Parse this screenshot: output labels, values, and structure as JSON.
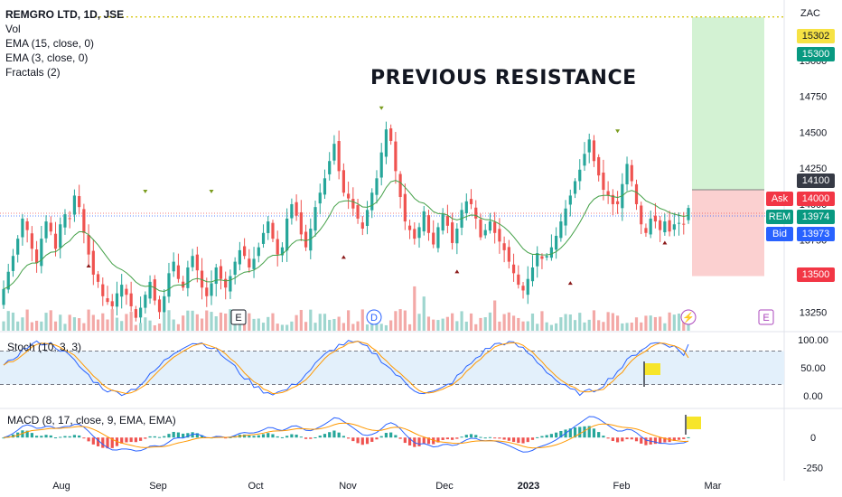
{
  "legend": {
    "symbol": "REMGRO LTD, 1D, JSE",
    "vol": "Vol",
    "ema1": "EMA (15, close, 0)",
    "ema2": "EMA (3, close, 0)",
    "fractals": "Fractals (2)"
  },
  "annotation": "PREVIOUS RESISTANCE",
  "currency": "ZAC",
  "price_tags": {
    "resistance_line": "15302",
    "target": "15300",
    "entry": "14100",
    "ask_value": "14000",
    "last_value": "13974",
    "bid_value": "13973",
    "stop": "13500"
  },
  "quote_labels": {
    "ask": "Ask",
    "last": "REM",
    "bid": "Bid"
  },
  "pane_labels": {
    "stoch": "Stoch (10, 3, 3)",
    "macd": "MACD (8, 17, close, 9, EMA, EMA)"
  },
  "event_badges": [
    "E",
    "D",
    "E"
  ],
  "colors": {
    "up": "#26a69a",
    "down": "#ef5350",
    "ema_slow": "#43a047",
    "k_line": "#2962ff",
    "d_line": "#ff9800",
    "profit_zone": "#d3f2d3",
    "loss_zone": "#fbd0d0",
    "flag": "#f7e52a"
  },
  "chart_data": [
    {
      "type": "candlestick",
      "title": "REMGRO LTD, 1D, JSE",
      "x_ticks": [
        "Aug",
        "Sep",
        "Oct",
        "Nov",
        "Dec",
        "2023",
        "Feb",
        "Mar"
      ],
      "y_ticks": [
        15000,
        14750,
        14500,
        14250,
        14000,
        13750,
        13500,
        13250
      ],
      "ylim": [
        13120,
        15420
      ],
      "series": [
        {
          "name": "EMA (15, close, 0)",
          "style": "line"
        },
        {
          "name": "EMA (3, close, 0)",
          "style": "line"
        }
      ],
      "resistance_level": 15302,
      "position": {
        "entry": 14100,
        "target": 15300,
        "stop": 13500
      },
      "closes": [
        13410,
        13530,
        13640,
        13760,
        13900,
        13820,
        13690,
        13590,
        13760,
        13880,
        13810,
        13690,
        13860,
        13930,
        13900,
        14060,
        13980,
        13800,
        13650,
        13510,
        13460,
        13360,
        13320,
        13290,
        13380,
        13440,
        13370,
        13290,
        13210,
        13280,
        13370,
        13460,
        13330,
        13250,
        13360,
        13520,
        13600,
        13480,
        13420,
        13560,
        13640,
        13540,
        13420,
        13360,
        13450,
        13560,
        13480,
        13420,
        13500,
        13600,
        13680,
        13640,
        13560,
        13620,
        13700,
        13800,
        13880,
        13760,
        13650,
        13700,
        13900,
        14000,
        13920,
        13790,
        13700,
        13830,
        13980,
        14080,
        14180,
        14300,
        14420,
        14230,
        14080,
        14040,
        13970,
        13900,
        13830,
        13960,
        14080,
        14180,
        14360,
        14520,
        14440,
        14230,
        14050,
        13880,
        13820,
        13760,
        13840,
        13950,
        13800,
        13720,
        13840,
        13930,
        13850,
        13730,
        13830,
        13960,
        14020,
        14000,
        13900,
        13770,
        13820,
        13880,
        13800,
        13740,
        13680,
        13600,
        13520,
        13440,
        13400,
        13480,
        13560,
        13660,
        13620,
        13640,
        13700,
        13780,
        13880,
        13970,
        14060,
        14160,
        14240,
        14350,
        14450,
        14300,
        14200,
        14100,
        14060,
        14000,
        14000,
        14140,
        14280,
        14160,
        14000,
        13860,
        13800,
        13900,
        13880,
        13820,
        13880,
        13810,
        13860,
        13870,
        13860,
        13974
      ],
      "volume_levels": [
        "low",
        "moderate",
        "spikes near Nov and Dec"
      ]
    },
    {
      "type": "line",
      "title": "Stoch (10, 3, 3)",
      "y_ticks": [
        100.0,
        50.0,
        0.0
      ],
      "ylim": [
        -10,
        110
      ],
      "bands": [
        80,
        20
      ],
      "series": [
        {
          "name": "%K"
        },
        {
          "name": "%D"
        }
      ],
      "last_values": {
        "k": 92,
        "d": 68
      }
    },
    {
      "type": "bar",
      "title": "MACD (8, 17, close, 9, EMA, EMA)",
      "y_ticks": [
        0,
        -250
      ],
      "ylim": [
        -330,
        220
      ],
      "series": [
        {
          "name": "MACD"
        },
        {
          "name": "Signal"
        },
        {
          "name": "Histogram"
        }
      ]
    }
  ]
}
